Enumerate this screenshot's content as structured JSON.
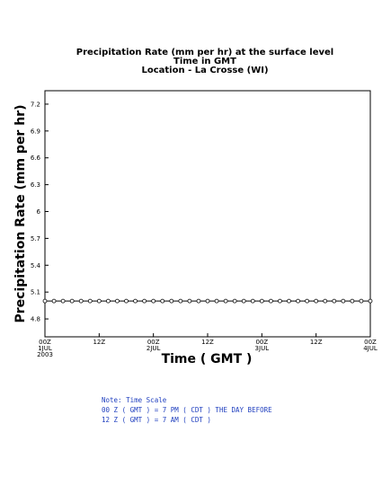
{
  "chart_data": {
    "type": "line",
    "title_lines": [
      "Precipitation Rate (mm per hr) at the surface level",
      "Time in GMT",
      "Location - La Crosse (WI)"
    ],
    "xlabel": "Time ( GMT )",
    "ylabel": "Precipitation Rate (mm per hr)",
    "x_start": "2003-07-01T00:00Z",
    "x_end": "2003-07-04T00:00Z",
    "x_ticks": [
      {
        "x": 0,
        "label": "00Z",
        "sub": "1JUL",
        "sub2": "2003"
      },
      {
        "x": 12,
        "label": "12Z",
        "sub": "",
        "sub2": ""
      },
      {
        "x": 24,
        "label": "00Z",
        "sub": "2JUL",
        "sub2": ""
      },
      {
        "x": 36,
        "label": "12Z",
        "sub": "",
        "sub2": ""
      },
      {
        "x": 48,
        "label": "00Z",
        "sub": "3JUL",
        "sub2": ""
      },
      {
        "x": 60,
        "label": "12Z",
        "sub": "",
        "sub2": ""
      },
      {
        "x": 72,
        "label": "00Z",
        "sub": "4JUL",
        "sub2": ""
      }
    ],
    "y_ticks": [
      4.8,
      5.1,
      5.4,
      5.7,
      6,
      6.3,
      6.6,
      6.9,
      7.2
    ],
    "y_tick_labels": [
      "4.8",
      "5.1",
      "5.4",
      "5.7",
      "6",
      "6.3",
      "6.6",
      "6.9",
      "7.2"
    ],
    "xlim": [
      0,
      72
    ],
    "ylim": [
      4.6,
      7.35
    ],
    "marker": "open-circle",
    "series": [
      {
        "x": [
          0,
          2,
          4,
          6,
          8,
          10,
          12,
          14,
          16,
          18,
          20,
          22,
          24,
          26,
          28,
          30,
          32,
          34,
          36,
          38,
          40,
          42,
          44,
          46,
          48,
          50,
          52,
          54,
          56,
          58,
          60,
          62,
          64,
          66,
          68,
          70,
          72
        ],
        "y": [
          5,
          5,
          5,
          5,
          5,
          5,
          5,
          5,
          5,
          5,
          5,
          5,
          5,
          5,
          5,
          5,
          5,
          5,
          5,
          5,
          5,
          5,
          5,
          5,
          5,
          5,
          5,
          5,
          5,
          5,
          5,
          5,
          5,
          5,
          5,
          5,
          5
        ]
      }
    ]
  },
  "note": {
    "lines": [
      "Note: Time Scale",
      "00 Z ( GMT ) = 7 PM ( CDT ) THE DAY BEFORE",
      "12 Z ( GMT ) = 7 AM ( CDT )"
    ]
  }
}
